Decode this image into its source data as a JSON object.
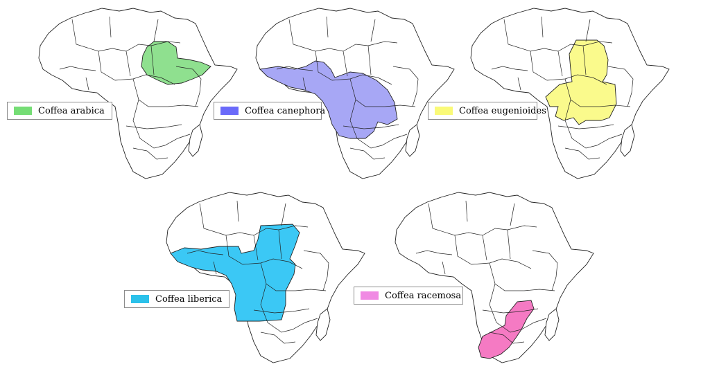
{
  "maps": [
    {
      "species": "Coffea arabica",
      "color": "#8fe08f"
    },
    {
      "species": "Coffea canephora",
      "color": "#a7a7f5"
    },
    {
      "species": "Coffea eugenioides",
      "color": "#fafa8c"
    },
    {
      "species": "Coffea liberica",
      "color": "#3bc8f5"
    },
    {
      "species": "Coffea racemosa",
      "color": "#f57ac3"
    }
  ],
  "legend_swatch_colors": [
    "#75dd75",
    "#6a6afa",
    "#fafa78",
    "#2bc1ea",
    "#f08ae3"
  ]
}
